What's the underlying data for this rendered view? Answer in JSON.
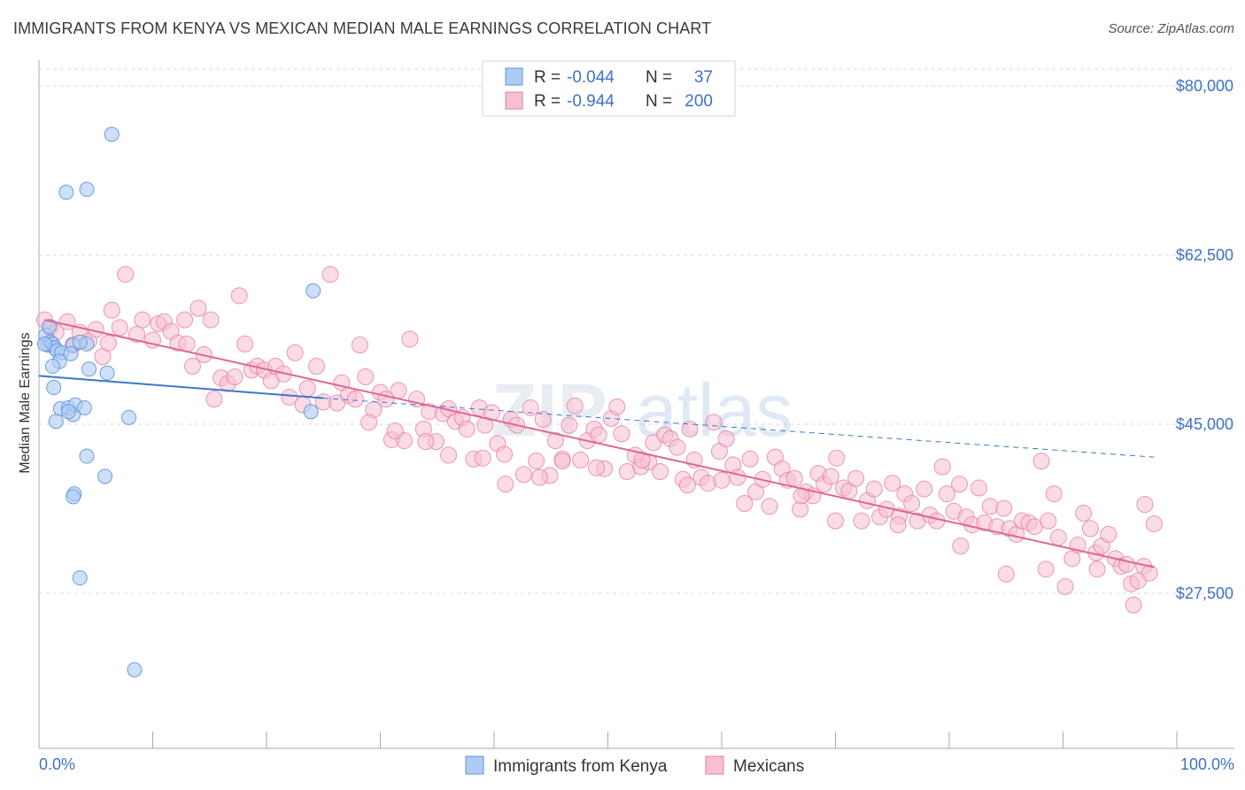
{
  "header": {
    "title": "IMMIGRANTS FROM KENYA VS MEXICAN MEDIAN MALE EARNINGS CORRELATION CHART",
    "source": "Source: ZipAtlas.com"
  },
  "watermark": {
    "text_zip": "ZIP",
    "text_atlas": "atlas"
  },
  "colors": {
    "kenya_fill": "#aecbf3",
    "kenya_stroke": "#5f94d9",
    "kenya_line": "#3b78c9",
    "mexican_fill": "#f7c0d2",
    "mexican_stroke": "#e47ea3",
    "mexican_line": "#e06693",
    "tick_label": "#3f72c6",
    "grid": "#d9d9d9"
  },
  "legend_top": {
    "rows": [
      {
        "r_label": "R = ",
        "r_value": "-0.044",
        "n_label": "N = ",
        "n_value": "37"
      },
      {
        "r_label": "R = ",
        "r_value": "-0.944",
        "n_label": "N = ",
        "n_value": "200"
      }
    ]
  },
  "legend_bottom": {
    "items": [
      {
        "label": "Immigrants from Kenya"
      },
      {
        "label": "Mexicans"
      }
    ]
  },
  "chart_data": {
    "type": "scatter",
    "title": "IMMIGRANTS FROM KENYA VS MEXICAN MEDIAN MALE EARNINGS CORRELATION CHART",
    "xlabel": "",
    "ylabel": "Median Male Earnings",
    "xlim": [
      0,
      100
    ],
    "ylim": [
      14000,
      84000
    ],
    "x_tick_labels": [
      "0.0%",
      "100.0%"
    ],
    "y_ticks": [
      27500,
      45000,
      62500,
      80000
    ],
    "y_tick_labels": [
      "$27,500",
      "$45,000",
      "$62,500",
      "$80,000"
    ],
    "grid": true,
    "legend_position": "top-center",
    "series": [
      {
        "name": "Immigrants from Kenya",
        "r": -0.044,
        "n": 37,
        "trend": {
          "x0": 0,
          "y0": 50000,
          "x1": 25,
          "y1": 47700,
          "dashed_to_x": 98,
          "dashed_to_y": 41600
        },
        "points": [
          [
            0.6,
            54200
          ],
          [
            0.8,
            53200
          ],
          [
            1.0,
            53500
          ],
          [
            1.2,
            53300
          ],
          [
            0.9,
            55100
          ],
          [
            1.4,
            52900
          ],
          [
            1.6,
            52600
          ],
          [
            2.0,
            52400
          ],
          [
            1.8,
            51500
          ],
          [
            1.2,
            51000
          ],
          [
            3.0,
            53200
          ],
          [
            2.8,
            52300
          ],
          [
            4.2,
            53300
          ],
          [
            3.6,
            53500
          ],
          [
            4.4,
            50700
          ],
          [
            6.0,
            50300
          ],
          [
            1.3,
            48800
          ],
          [
            1.9,
            46600
          ],
          [
            2.6,
            46700
          ],
          [
            3.0,
            46000
          ],
          [
            3.2,
            47000
          ],
          [
            2.6,
            46300
          ],
          [
            4.0,
            46700
          ],
          [
            1.5,
            45300
          ],
          [
            7.9,
            45700
          ],
          [
            23.9,
            46300
          ],
          [
            24.1,
            58800
          ],
          [
            4.2,
            41700
          ],
          [
            3.1,
            37800
          ],
          [
            3.0,
            37500
          ],
          [
            5.8,
            39600
          ],
          [
            3.6,
            29100
          ],
          [
            2.4,
            69000
          ],
          [
            4.2,
            69300
          ],
          [
            6.4,
            75000
          ],
          [
            8.4,
            19600
          ],
          [
            0.5,
            53300
          ]
        ]
      },
      {
        "name": "Mexicans",
        "r": -0.944,
        "n": 200,
        "trend": {
          "x0": 0.5,
          "y0": 55800,
          "x1": 98,
          "y1": 30200
        },
        "points": [
          [
            0.5,
            55800
          ],
          [
            1.0,
            55000
          ],
          [
            1.5,
            54500
          ],
          [
            2.5,
            55600
          ],
          [
            3.0,
            53200
          ],
          [
            3.6,
            54500
          ],
          [
            4.4,
            53600
          ],
          [
            5.0,
            54800
          ],
          [
            5.6,
            52000
          ],
          [
            6.1,
            53400
          ],
          [
            6.4,
            56800
          ],
          [
            7.1,
            55000
          ],
          [
            7.6,
            60500
          ],
          [
            8.6,
            54300
          ],
          [
            9.1,
            55800
          ],
          [
            10.0,
            53700
          ],
          [
            10.5,
            55400
          ],
          [
            11.0,
            55600
          ],
          [
            11.6,
            54600
          ],
          [
            12.2,
            53400
          ],
          [
            12.8,
            55800
          ],
          [
            13.0,
            53300
          ],
          [
            13.5,
            51000
          ],
          [
            14.0,
            57000
          ],
          [
            14.5,
            52200
          ],
          [
            15.1,
            55800
          ],
          [
            15.4,
            47600
          ],
          [
            16.0,
            49800
          ],
          [
            16.6,
            49200
          ],
          [
            17.2,
            49900
          ],
          [
            17.6,
            58300
          ],
          [
            18.1,
            53300
          ],
          [
            18.7,
            50600
          ],
          [
            19.2,
            51000
          ],
          [
            19.8,
            50600
          ],
          [
            20.4,
            49500
          ],
          [
            20.8,
            51000
          ],
          [
            21.5,
            50200
          ],
          [
            22.0,
            47800
          ],
          [
            22.5,
            52400
          ],
          [
            23.2,
            47000
          ],
          [
            23.6,
            48700
          ],
          [
            24.4,
            51000
          ],
          [
            25.0,
            47300
          ],
          [
            25.6,
            60500
          ],
          [
            26.2,
            47200
          ],
          [
            26.6,
            49300
          ],
          [
            27.2,
            48000
          ],
          [
            27.8,
            47600
          ],
          [
            28.2,
            53200
          ],
          [
            28.7,
            49900
          ],
          [
            29.4,
            46500
          ],
          [
            30.0,
            48300
          ],
          [
            30.5,
            47600
          ],
          [
            31.0,
            43400
          ],
          [
            31.6,
            48500
          ],
          [
            32.1,
            43300
          ],
          [
            32.6,
            53800
          ],
          [
            33.2,
            47600
          ],
          [
            33.8,
            44500
          ],
          [
            34.3,
            46300
          ],
          [
            34.9,
            43200
          ],
          [
            35.5,
            46100
          ],
          [
            36.0,
            46600
          ],
          [
            36.6,
            45300
          ],
          [
            37.2,
            45700
          ],
          [
            37.6,
            44500
          ],
          [
            38.2,
            41400
          ],
          [
            38.7,
            46700
          ],
          [
            39.2,
            44900
          ],
          [
            39.8,
            46200
          ],
          [
            40.3,
            43000
          ],
          [
            40.9,
            41900
          ],
          [
            41.5,
            45500
          ],
          [
            42.0,
            44900
          ],
          [
            42.6,
            39800
          ],
          [
            43.2,
            46700
          ],
          [
            43.7,
            41200
          ],
          [
            44.3,
            45500
          ],
          [
            44.9,
            39700
          ],
          [
            45.4,
            43300
          ],
          [
            46.0,
            41400
          ],
          [
            46.6,
            44900
          ],
          [
            47.1,
            46900
          ],
          [
            47.6,
            41300
          ],
          [
            48.2,
            43300
          ],
          [
            48.8,
            44500
          ],
          [
            49.2,
            43900
          ],
          [
            49.7,
            40400
          ],
          [
            50.3,
            45600
          ],
          [
            50.8,
            46800
          ],
          [
            51.2,
            44000
          ],
          [
            51.7,
            40100
          ],
          [
            52.4,
            41800
          ],
          [
            52.9,
            40600
          ],
          [
            53.6,
            41100
          ],
          [
            54.0,
            43100
          ],
          [
            54.6,
            40100
          ],
          [
            55.0,
            43900
          ],
          [
            55.5,
            43500
          ],
          [
            56.1,
            42600
          ],
          [
            56.6,
            39300
          ],
          [
            57.2,
            44500
          ],
          [
            57.6,
            41300
          ],
          [
            58.2,
            39500
          ],
          [
            58.8,
            38900
          ],
          [
            59.3,
            45200
          ],
          [
            59.8,
            42200
          ],
          [
            60.4,
            43500
          ],
          [
            61.0,
            40800
          ],
          [
            61.4,
            39500
          ],
          [
            62.0,
            36800
          ],
          [
            62.5,
            41400
          ],
          [
            63.0,
            38000
          ],
          [
            63.6,
            39300
          ],
          [
            64.2,
            36500
          ],
          [
            64.7,
            41600
          ],
          [
            65.3,
            40400
          ],
          [
            65.8,
            39200
          ],
          [
            66.4,
            39400
          ],
          [
            66.9,
            36200
          ],
          [
            67.4,
            38000
          ],
          [
            68.0,
            37600
          ],
          [
            68.5,
            39900
          ],
          [
            69.0,
            38800
          ],
          [
            69.6,
            39600
          ],
          [
            70.1,
            41500
          ],
          [
            70.7,
            38400
          ],
          [
            71.2,
            38100
          ],
          [
            71.8,
            39400
          ],
          [
            72.3,
            35000
          ],
          [
            72.8,
            37100
          ],
          [
            73.4,
            38300
          ],
          [
            73.9,
            35400
          ],
          [
            74.5,
            36200
          ],
          [
            75.0,
            38900
          ],
          [
            75.6,
            35500
          ],
          [
            76.1,
            37800
          ],
          [
            76.7,
            36800
          ],
          [
            77.2,
            35000
          ],
          [
            77.8,
            38300
          ],
          [
            78.3,
            35600
          ],
          [
            78.9,
            35000
          ],
          [
            79.4,
            40600
          ],
          [
            79.8,
            37800
          ],
          [
            80.4,
            36000
          ],
          [
            80.9,
            38800
          ],
          [
            81.5,
            35400
          ],
          [
            82.0,
            34600
          ],
          [
            82.6,
            38400
          ],
          [
            83.1,
            34800
          ],
          [
            83.6,
            36500
          ],
          [
            84.2,
            34400
          ],
          [
            84.8,
            36300
          ],
          [
            85.3,
            34200
          ],
          [
            85.9,
            33600
          ],
          [
            86.4,
            35000
          ],
          [
            87.0,
            34800
          ],
          [
            87.5,
            34400
          ],
          [
            88.1,
            41200
          ],
          [
            88.7,
            35000
          ],
          [
            89.2,
            37800
          ],
          [
            89.6,
            33300
          ],
          [
            90.2,
            28200
          ],
          [
            90.8,
            31100
          ],
          [
            91.3,
            32500
          ],
          [
            91.8,
            35800
          ],
          [
            92.4,
            34200
          ],
          [
            92.9,
            31700
          ],
          [
            93.4,
            32400
          ],
          [
            94.0,
            33600
          ],
          [
            94.6,
            31100
          ],
          [
            95.1,
            30300
          ],
          [
            95.6,
            30500
          ],
          [
            96.0,
            28500
          ],
          [
            96.6,
            28800
          ],
          [
            97.1,
            30300
          ],
          [
            97.6,
            29600
          ],
          [
            98.0,
            34700
          ],
          [
            97.2,
            36700
          ],
          [
            85.0,
            29500
          ],
          [
            88.5,
            30000
          ],
          [
            93.0,
            30000
          ],
          [
            96.2,
            26300
          ],
          [
            81.0,
            32400
          ],
          [
            75.5,
            34600
          ],
          [
            70.0,
            35000
          ],
          [
            67.0,
            37600
          ],
          [
            60.0,
            39200
          ],
          [
            57.0,
            38700
          ],
          [
            53.0,
            41300
          ],
          [
            49.0,
            40500
          ],
          [
            46.0,
            41200
          ],
          [
            44.0,
            39500
          ],
          [
            41.0,
            38800
          ],
          [
            39.0,
            41500
          ],
          [
            36.0,
            41800
          ],
          [
            34.0,
            43200
          ],
          [
            31.3,
            44300
          ],
          [
            29.0,
            45200
          ]
        ]
      }
    ]
  }
}
